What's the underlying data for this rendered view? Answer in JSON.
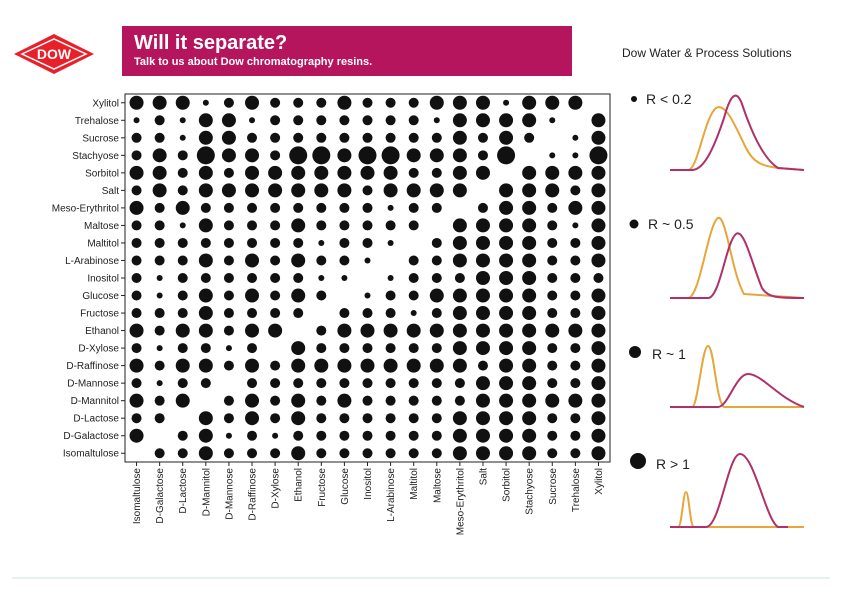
{
  "header": {
    "logo_text": "DOW",
    "title": "Will it separate?",
    "subtitle": "Talk to us about Dow chromatography resins.",
    "company": "Dow Water & Process Solutions"
  },
  "colors": {
    "brand_red": "#e8202a",
    "banner": "#b5155d",
    "dot": "#111111",
    "curve_a": "#e8a63a",
    "curve_b": "#b0306a"
  },
  "legend": [
    {
      "size": 1,
      "label": "R < 0.2"
    },
    {
      "size": 2,
      "label": "R ~ 0.5"
    },
    {
      "size": 3,
      "label": "R ~ 1"
    },
    {
      "size": 4,
      "label": "R > 1"
    }
  ],
  "chart_data": {
    "type": "scatter",
    "title": "",
    "xlabel": "",
    "ylabel": "",
    "value_scale": "resolution class 1 = R<0.2, 2 = R~0.5, 3 = R~1, 4 = R>1, 0 = none",
    "rows": [
      "Xylitol",
      "Trehalose",
      "Sucrose",
      "Stachyose",
      "Sorbitol",
      "Salt",
      "Meso-Erythritol",
      "Maltose",
      "Maltitol",
      "L-Arabinose",
      "Inositol",
      "Glucose",
      "Fructose",
      "Ethanol",
      "D-Xylose",
      "D-Raffinose",
      "D-Mannose",
      "D-Mannitol",
      "D-Lactose",
      "D-Galactose",
      "Isomaltulose"
    ],
    "columns": [
      "Isomaltulose",
      "D-Galactose",
      "D-Lactose",
      "D-Mannitol",
      "D-Mannose",
      "D-Raffinose",
      "D-Xylose",
      "Ethanol",
      "Fructose",
      "Glucose",
      "Inositol",
      "L-Arabinose",
      "Maltitol",
      "Maltose",
      "Meso-Erythritol",
      "Salt",
      "Sorbitol",
      "Stachyose",
      "Sucrose",
      "Trehalose",
      "Xylitol"
    ],
    "matrix": [
      [
        3,
        3,
        3,
        1,
        2,
        3,
        2,
        2,
        2,
        3,
        2,
        2,
        2,
        3,
        3,
        3,
        1,
        3,
        3,
        3,
        0
      ],
      [
        1,
        2,
        1,
        3,
        3,
        1,
        2,
        2,
        2,
        2,
        2,
        2,
        2,
        1,
        3,
        3,
        3,
        3,
        1,
        0,
        3
      ],
      [
        2,
        2,
        1,
        3,
        3,
        2,
        2,
        2,
        2,
        2,
        2,
        2,
        2,
        2,
        3,
        2,
        3,
        2,
        0,
        1,
        3
      ],
      [
        2,
        3,
        2,
        4,
        3,
        3,
        2,
        4,
        4,
        3,
        4,
        4,
        3,
        3,
        3,
        2,
        4,
        0,
        1,
        1,
        4
      ],
      [
        3,
        3,
        2,
        3,
        2,
        3,
        3,
        3,
        3,
        3,
        3,
        3,
        2,
        2,
        3,
        3,
        0,
        3,
        3,
        3,
        3
      ],
      [
        2,
        3,
        2,
        3,
        3,
        3,
        3,
        3,
        3,
        3,
        2,
        3,
        3,
        3,
        3,
        0,
        3,
        3,
        3,
        2,
        3
      ],
      [
        3,
        2,
        3,
        2,
        2,
        2,
        2,
        2,
        2,
        2,
        2,
        1,
        2,
        2,
        0,
        2,
        3,
        3,
        2,
        3,
        3
      ],
      [
        2,
        2,
        1,
        3,
        2,
        2,
        2,
        3,
        2,
        2,
        2,
        2,
        2,
        0,
        3,
        3,
        3,
        3,
        2,
        1,
        3
      ],
      [
        2,
        2,
        2,
        2,
        2,
        2,
        2,
        2,
        1,
        2,
        2,
        1,
        0,
        2,
        3,
        3,
        3,
        3,
        2,
        2,
        3
      ],
      [
        2,
        2,
        2,
        3,
        2,
        3,
        2,
        3,
        2,
        2,
        1,
        0,
        2,
        2,
        3,
        3,
        3,
        3,
        2,
        2,
        3
      ],
      [
        2,
        1,
        2,
        2,
        2,
        2,
        2,
        2,
        1,
        1,
        0,
        1,
        2,
        2,
        2,
        3,
        3,
        3,
        2,
        2,
        2
      ],
      [
        2,
        1,
        2,
        3,
        2,
        3,
        2,
        3,
        2,
        0,
        1,
        2,
        2,
        3,
        3,
        3,
        3,
        3,
        2,
        2,
        3
      ],
      [
        2,
        2,
        2,
        3,
        2,
        2,
        2,
        2,
        0,
        2,
        2,
        2,
        1,
        2,
        3,
        3,
        3,
        3,
        2,
        2,
        3
      ],
      [
        3,
        2,
        3,
        3,
        2,
        3,
        3,
        0,
        2,
        3,
        3,
        3,
        3,
        3,
        3,
        3,
        3,
        3,
        3,
        3,
        3
      ],
      [
        2,
        1,
        2,
        2,
        1,
        2,
        0,
        3,
        2,
        2,
        2,
        2,
        2,
        2,
        3,
        3,
        3,
        3,
        2,
        2,
        3
      ],
      [
        3,
        2,
        3,
        3,
        2,
        3,
        2,
        3,
        3,
        3,
        3,
        3,
        3,
        3,
        3,
        2,
        3,
        3,
        2,
        2,
        3
      ],
      [
        2,
        1,
        2,
        2,
        0,
        2,
        2,
        2,
        2,
        2,
        2,
        2,
        2,
        2,
        2,
        3,
        3,
        3,
        2,
        2,
        3
      ],
      [
        3,
        2,
        3,
        0,
        2,
        3,
        2,
        3,
        2,
        3,
        2,
        2,
        2,
        2,
        2,
        3,
        3,
        3,
        3,
        3,
        3
      ],
      [
        2,
        2,
        0,
        3,
        2,
        3,
        2,
        3,
        2,
        2,
        2,
        2,
        2,
        2,
        3,
        3,
        3,
        3,
        2,
        2,
        3
      ],
      [
        3,
        0,
        2,
        3,
        1,
        2,
        1,
        2,
        2,
        2,
        2,
        2,
        2,
        2,
        3,
        3,
        3,
        3,
        2,
        2,
        3
      ],
      [
        0,
        2,
        2,
        3,
        2,
        2,
        2,
        3,
        2,
        2,
        2,
        2,
        2,
        2,
        3,
        3,
        3,
        3,
        2,
        2,
        3
      ]
    ]
  }
}
